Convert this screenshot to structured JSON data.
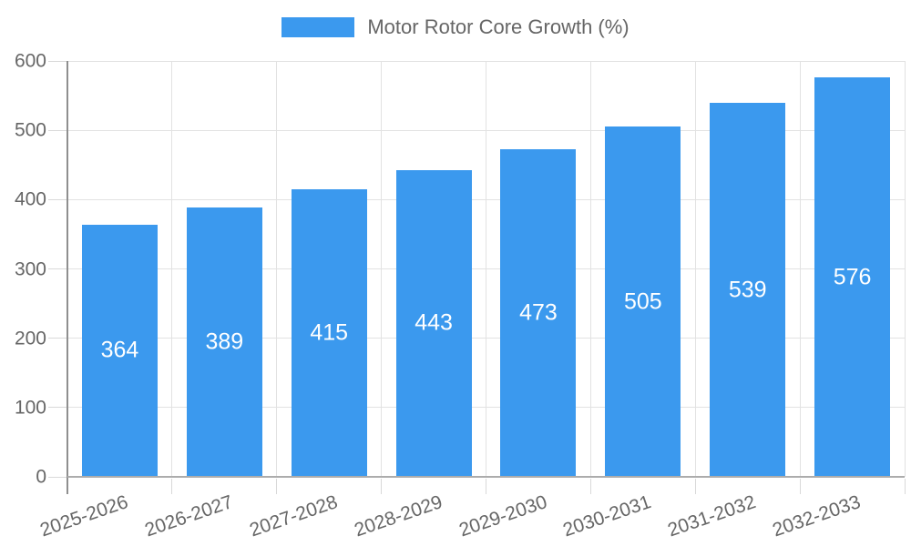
{
  "chart_data": {
    "type": "bar",
    "title": "Motor Rotor Core Growth (%)",
    "categories": [
      "2025-2026",
      "2026-2027",
      "2027-2028",
      "2028-2029",
      "2029-2030",
      "2030-2031",
      "2031-2032",
      "2032-2033"
    ],
    "values": [
      364,
      389,
      415,
      443,
      473,
      505,
      539,
      576
    ],
    "xlabel": "",
    "ylabel": "",
    "ylim": [
      0,
      600
    ],
    "ytick_step": 100,
    "yticks": [
      0,
      100,
      200,
      300,
      400,
      500,
      600
    ],
    "grid": true,
    "legend_position": "top",
    "value_labels": "centered-inside-bars",
    "colors": {
      "bar": "#3B99EE",
      "value_label": "#FFFFFF",
      "axis_text": "#666666",
      "legend_text": "#666666",
      "gridline": "#E2E2E2",
      "tick": "#D9D9D9",
      "y_axis_line": "#8F8F8F",
      "x_axis_line": "#ACACAC"
    }
  }
}
